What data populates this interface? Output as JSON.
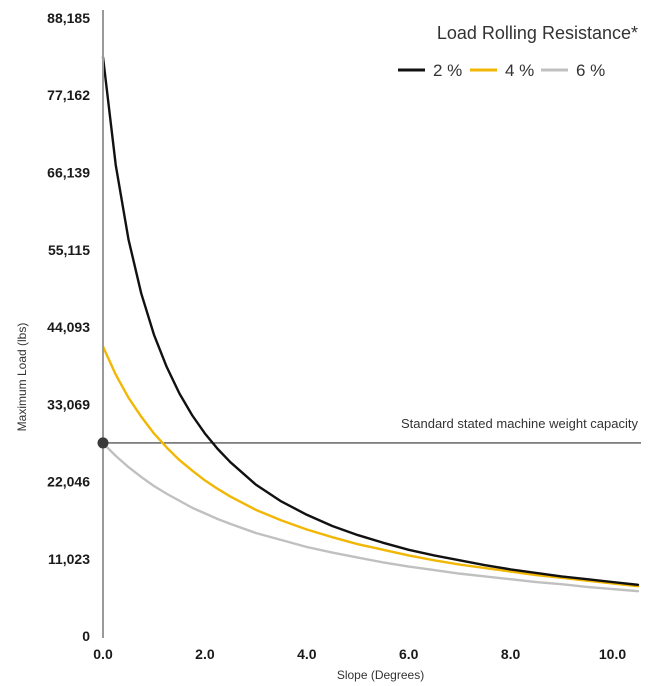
{
  "chart_data": {
    "type": "line",
    "xlabel": "Slope (Degrees)",
    "ylabel": "Maximum Load (lbs)",
    "xlim": [
      0,
      10.5
    ],
    "ylim": [
      0,
      88185
    ],
    "x_ticks": [
      "0.0",
      "2.0",
      "4.0",
      "6.0",
      "8.0",
      "10.0"
    ],
    "x_tick_values": [
      0,
      2,
      4,
      6,
      8,
      10
    ],
    "y_ticks": [
      "0",
      "11,023",
      "22,046",
      "33,069",
      "44,093",
      "55,115",
      "66,139",
      "77,162",
      "88,185"
    ],
    "y_tick_values": [
      0,
      11023,
      22046,
      33069,
      44093,
      55115,
      66139,
      77162,
      88185
    ],
    "legend": {
      "title": "Load Rolling Resistance*",
      "position": "top-right"
    },
    "series": [
      {
        "name": "2 %",
        "color": "#111111",
        "x": [
          0,
          0.25,
          0.5,
          0.75,
          1.0,
          1.25,
          1.5,
          1.75,
          2.0,
          2.25,
          2.5,
          3.0,
          3.5,
          4.0,
          4.5,
          5.0,
          5.5,
          6.0,
          6.5,
          7.0,
          7.5,
          8.0,
          8.5,
          9.0,
          9.5,
          10.0,
          10.5
        ],
        "y": [
          82600,
          67200,
          56600,
          48900,
          43000,
          38400,
          34600,
          31500,
          28900,
          26700,
          24800,
          21600,
          19200,
          17300,
          15700,
          14400,
          13300,
          12300,
          11500,
          10800,
          10100,
          9500,
          9000,
          8500,
          8100,
          7700,
          7300
        ]
      },
      {
        "name": "4 %",
        "color": "#F2B705",
        "x": [
          0,
          0.25,
          0.5,
          0.75,
          1.0,
          1.25,
          1.5,
          1.75,
          2.0,
          2.25,
          2.5,
          3.0,
          3.5,
          4.0,
          4.5,
          5.0,
          5.5,
          6.0,
          6.5,
          7.0,
          7.5,
          8.0,
          8.5,
          9.0,
          9.5,
          10.0,
          10.5
        ],
        "y": [
          41300,
          37300,
          34000,
          31300,
          28900,
          26900,
          25100,
          23600,
          22200,
          21000,
          19900,
          18000,
          16500,
          15200,
          14100,
          13100,
          12300,
          11500,
          10800,
          10200,
          9700,
          9200,
          8700,
          8300,
          7900,
          7500,
          7100
        ]
      },
      {
        "name": "6 %",
        "color": "#C0C0C0",
        "x": [
          0,
          0.25,
          0.5,
          0.75,
          1.0,
          1.25,
          1.5,
          1.75,
          2.0,
          2.25,
          2.5,
          3.0,
          3.5,
          4.0,
          4.5,
          5.0,
          5.5,
          6.0,
          6.5,
          7.0,
          7.5,
          8.0,
          8.5,
          9.0,
          9.5,
          10.0,
          10.5
        ],
        "y": [
          27500,
          25700,
          24100,
          22700,
          21400,
          20300,
          19300,
          18300,
          17500,
          16700,
          16000,
          14700,
          13700,
          12700,
          11900,
          11200,
          10500,
          9900,
          9400,
          8900,
          8500,
          8100,
          7700,
          7400,
          7000,
          6700,
          6400
        ]
      }
    ],
    "reference_line": {
      "label": "Standard stated machine weight capacity",
      "y": 27550,
      "color": "#333333"
    },
    "grid": false
  }
}
